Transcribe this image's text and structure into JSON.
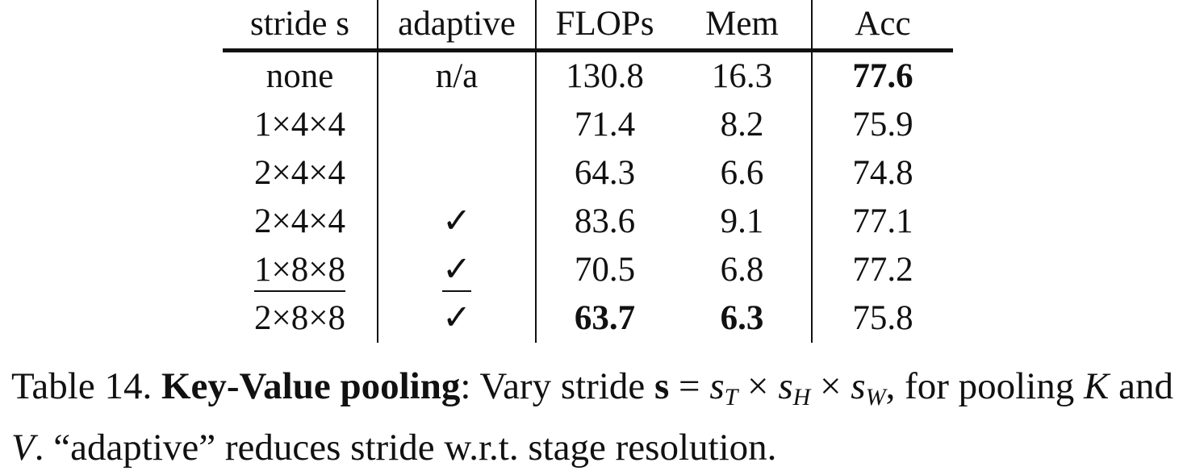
{
  "table": {
    "headers": [
      "stride s",
      "adaptive",
      "FLOPs",
      "Mem",
      "Acc"
    ],
    "rows": [
      {
        "stride": "none",
        "adaptive": "n/a",
        "flops": "130.8",
        "mem": "16.3",
        "acc": "77.6"
      },
      {
        "stride": "1×4×4",
        "adaptive": "",
        "flops": "71.4",
        "mem": "8.2",
        "acc": "75.9"
      },
      {
        "stride": "2×4×4",
        "adaptive": "",
        "flops": "64.3",
        "mem": "6.6",
        "acc": "74.8"
      },
      {
        "stride": "2×4×4",
        "adaptive": "✓",
        "flops": "83.6",
        "mem": "9.1",
        "acc": "77.1"
      },
      {
        "stride": "1×8×8",
        "adaptive": "✓",
        "flops": "70.5",
        "mem": "6.8",
        "acc": "77.2"
      },
      {
        "stride": "2×8×8",
        "adaptive": "✓",
        "flops": "63.7",
        "mem": "6.3",
        "acc": "75.8"
      }
    ]
  },
  "caption": {
    "label": "Table 14.",
    "title": "Key-Value pooling",
    "text_part1": ": Vary stride ",
    "stride_symbol": "s",
    "equals": " = ",
    "s_t": "s",
    "t_sub": "T",
    "times": " × ",
    "s_h": "s",
    "h_sub": "H",
    "s_w": "s",
    "w_sub": "W",
    "text_part2": ", for pooling ",
    "k": "K",
    "and": " and ",
    "v": "V",
    "text_part3": ". “adaptive” reduces stride w.r.t. stage resolution."
  }
}
